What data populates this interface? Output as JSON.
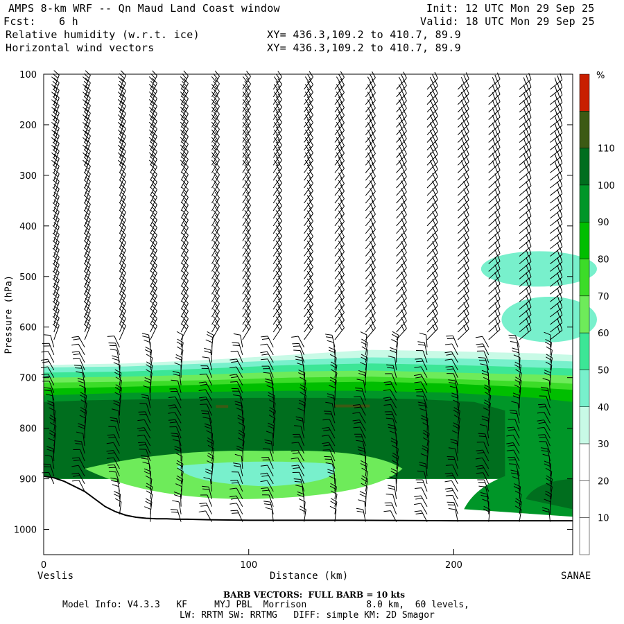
{
  "header": {
    "title": "AMPS 8-km WRF -- Qn Maud Land Coast window",
    "init": "Init: 12 UTC Mon 29 Sep 25",
    "fcst_label": "Fcst:",
    "fcst_value": "6 h",
    "valid": "Valid: 18 UTC Mon 29 Sep 25",
    "field1": "Relative humidity (w.r.t. ice)",
    "field2": "Horizontal wind vectors",
    "xy1": "XY= 436.3,109.2 to 410.7, 89.9",
    "xy2": "XY= 436.3,109.2 to 410.7, 89.9"
  },
  "footer": {
    "barb": "BARB VECTORS:  FULL BARB = 10 kts",
    "model_info_line1": "Model Info: V4.3.3   KF     MYJ PBL  Morrison           8.0 km,  60 levels,",
    "model_info_line2": "LW: RRTM SW: RRTMG   DIFF: simple KM: 2D Smagor"
  },
  "chart_data": {
    "type": "heatmap",
    "title": "Relative humidity (w.r.t. ice)",
    "xlabel": "Distance (km)",
    "ylabel": "Pressure (hPa)",
    "xlim": [
      0,
      258
    ],
    "ylim": [
      1050,
      100
    ],
    "x_ticks": [
      0,
      100,
      200
    ],
    "y_ticks": [
      100,
      200,
      300,
      400,
      500,
      600,
      700,
      800,
      900,
      1000
    ],
    "x_endpoint_left": "Veslis",
    "x_endpoint_right": "SANAE",
    "colorbar": {
      "unit": "%",
      "levels": [
        10,
        20,
        30,
        40,
        50,
        60,
        70,
        80,
        90,
        100,
        110
      ],
      "colors": [
        "#ffffff",
        "#ffffff",
        "#ffffff",
        "#c8fae6",
        "#78f0cc",
        "#3ce696",
        "#6eeb5a",
        "#3cdc28",
        "#00be00",
        "#009628",
        "#006e1e",
        "#3c5a14",
        "#c81e00"
      ]
    },
    "rh_bands": [
      {
        "level": 30,
        "x": [
          0,
          40,
          80,
          120,
          160,
          200,
          240,
          258
        ],
        "p_top": [
          675,
          672,
          665,
          655,
          645,
          648,
          652,
          655
        ]
      },
      {
        "level": 40,
        "x": [
          0,
          40,
          80,
          120,
          160,
          200,
          240,
          258
        ],
        "p_top": [
          680,
          678,
          672,
          665,
          660,
          662,
          665,
          668
        ]
      },
      {
        "level": 50,
        "x": [
          0,
          40,
          80,
          120,
          160,
          200,
          240,
          258
        ],
        "p_top": [
          690,
          688,
          682,
          675,
          672,
          675,
          680,
          682
        ]
      },
      {
        "level": 60,
        "x": [
          0,
          40,
          80,
          120,
          160,
          200,
          240,
          258
        ],
        "p_top": [
          700,
          698,
          694,
          688,
          686,
          690,
          694,
          696
        ]
      },
      {
        "level": 70,
        "x": [
          0,
          40,
          80,
          120,
          160,
          200,
          240,
          258
        ],
        "p_top": [
          710,
          708,
          705,
          700,
          698,
          703,
          708,
          712
        ]
      },
      {
        "level": 80,
        "x": [
          0,
          40,
          80,
          120,
          160,
          200,
          240,
          258
        ],
        "p_top": [
          722,
          718,
          714,
          710,
          708,
          712,
          720,
          724
        ]
      },
      {
        "level": 90,
        "x": [
          0,
          40,
          80,
          120,
          160,
          200,
          240,
          258
        ],
        "p_top": [
          735,
          730,
          728,
          726,
          726,
          730,
          740,
          748
        ]
      },
      {
        "level": 100,
        "x": [
          0,
          20,
          60,
          100,
          140,
          180,
          210,
          225
        ],
        "p_top": [
          748,
          745,
          742,
          740,
          740,
          742,
          748,
          765
        ]
      }
    ],
    "moist_upper_patch": {
      "level": 40,
      "x_range": [
        215,
        258
      ],
      "p_range": [
        450,
        520
      ]
    },
    "moist_upper_patch2": {
      "level": 40,
      "x_range": [
        225,
        258
      ],
      "p_range": [
        540,
        630
      ]
    },
    "max_marker": {
      "level": 110,
      "x_range": [
        142,
        159
      ],
      "p": 756
    },
    "max_marker2": {
      "level": 110,
      "x_range": [
        84,
        90
      ],
      "p": 757
    },
    "terrain_surface": {
      "x": [
        0,
        5,
        10,
        15,
        20,
        25,
        30,
        35,
        40,
        45,
        50,
        55,
        60,
        65,
        70,
        80,
        100,
        150,
        200,
        258
      ],
      "p": [
        895,
        898,
        905,
        915,
        925,
        940,
        955,
        965,
        972,
        976,
        978,
        979,
        979,
        980,
        980,
        981,
        982,
        982,
        983,
        983
      ]
    },
    "wind_barbs": {
      "x_positions": [
        5,
        20,
        37,
        52,
        67,
        82,
        97,
        112,
        127,
        142,
        157,
        172,
        187,
        202,
        217,
        232,
        247
      ],
      "p_spacing_hPa": 15,
      "full_barb_kts": 10
    }
  }
}
